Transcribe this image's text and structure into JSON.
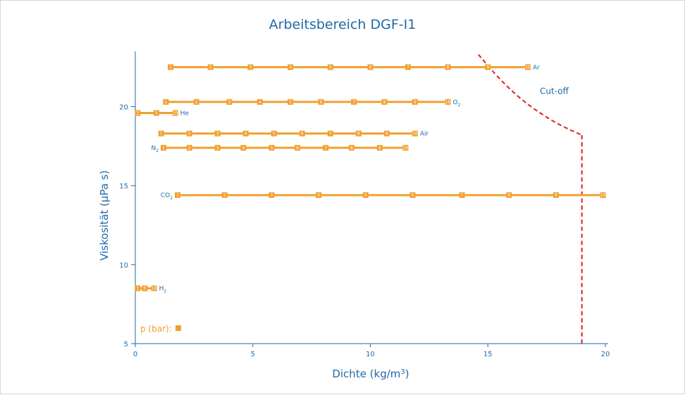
{
  "colors": {
    "axis": "#1f6aa8",
    "series": "#f0a030",
    "marker_text": "#ffffff",
    "cutoff": "#e02020"
  },
  "chart_data": {
    "type": "line",
    "title": "Arbeitsbereich DGF-I1",
    "xlabel": "Dichte (kg/m³)",
    "ylabel": "Viskosität (µPa s)",
    "xlim": [
      0,
      20
    ],
    "ylim": [
      5,
      23.5
    ],
    "x_ticks": [
      "0",
      "5",
      "10",
      "15",
      "20"
    ],
    "y_ticks": [
      "5",
      "10",
      "15",
      "20"
    ],
    "grid": false,
    "series": [
      {
        "name": "Ar",
        "label_side": "right",
        "y": 22.5,
        "points": [
          {
            "x": 1.5,
            "p": "1"
          },
          {
            "x": 3.2,
            "p": "2"
          },
          {
            "x": 4.9,
            "p": "3"
          },
          {
            "x": 6.6,
            "p": "4"
          },
          {
            "x": 8.3,
            "p": "5"
          },
          {
            "x": 10.0,
            "p": "6"
          },
          {
            "x": 11.6,
            "p": "7"
          },
          {
            "x": 13.3,
            "p": "8"
          },
          {
            "x": 15.0,
            "p": "9"
          },
          {
            "x": 16.7,
            "p": "10"
          }
        ]
      },
      {
        "name": "O",
        "sub": "2",
        "label_side": "right",
        "y": 20.3,
        "points": [
          {
            "x": 1.3,
            "p": "1"
          },
          {
            "x": 2.6,
            "p": "2"
          },
          {
            "x": 4.0,
            "p": "3"
          },
          {
            "x": 5.3,
            "p": "4"
          },
          {
            "x": 6.6,
            "p": "5"
          },
          {
            "x": 7.9,
            "p": "6"
          },
          {
            "x": 9.3,
            "p": "7"
          },
          {
            "x": 10.6,
            "p": "8"
          },
          {
            "x": 11.9,
            "p": "9"
          },
          {
            "x": 13.3,
            "p": "10"
          }
        ]
      },
      {
        "name": "He",
        "label_side": "right",
        "y": 19.6,
        "points": [
          {
            "x": 0.1,
            "p": "1"
          },
          {
            "x": 0.9,
            "p": "5"
          },
          {
            "x": 1.7,
            "p": "10"
          }
        ]
      },
      {
        "name": "Air",
        "label_side": "right",
        "y": 18.3,
        "points": [
          {
            "x": 1.1,
            "p": "1"
          },
          {
            "x": 2.3,
            "p": "2"
          },
          {
            "x": 3.5,
            "p": "3"
          },
          {
            "x": 4.7,
            "p": "4"
          },
          {
            "x": 5.9,
            "p": "5"
          },
          {
            "x": 7.1,
            "p": "6"
          },
          {
            "x": 8.3,
            "p": "7"
          },
          {
            "x": 9.5,
            "p": "8"
          },
          {
            "x": 10.7,
            "p": "9"
          },
          {
            "x": 11.9,
            "p": "10"
          }
        ]
      },
      {
        "name": "N",
        "sub": "2",
        "label_side": "left",
        "y": 17.4,
        "points": [
          {
            "x": 1.2,
            "p": "1"
          },
          {
            "x": 2.3,
            "p": "2"
          },
          {
            "x": 3.5,
            "p": "3"
          },
          {
            "x": 4.6,
            "p": "4"
          },
          {
            "x": 5.8,
            "p": "5"
          },
          {
            "x": 6.9,
            "p": "6"
          },
          {
            "x": 8.1,
            "p": "7"
          },
          {
            "x": 9.2,
            "p": "8"
          },
          {
            "x": 10.4,
            "p": "9"
          },
          {
            "x": 11.5,
            "p": "10"
          }
        ]
      },
      {
        "name": "CO",
        "sub": "2",
        "label_side": "left",
        "y": 14.4,
        "points": [
          {
            "x": 1.8,
            "p": "1"
          },
          {
            "x": 3.8,
            "p": "2"
          },
          {
            "x": 5.8,
            "p": "3"
          },
          {
            "x": 7.8,
            "p": "4"
          },
          {
            "x": 9.8,
            "p": "5"
          },
          {
            "x": 11.8,
            "p": "6"
          },
          {
            "x": 13.9,
            "p": "7"
          },
          {
            "x": 15.9,
            "p": "8"
          },
          {
            "x": 17.9,
            "p": "9"
          },
          {
            "x": 19.9,
            "p": "10"
          }
        ]
      },
      {
        "name": "H",
        "sub": "2",
        "label_side": "right",
        "y": 8.5,
        "points": [
          {
            "x": 0.1,
            "p": "1"
          },
          {
            "x": 0.4,
            "p": "5"
          },
          {
            "x": 0.8,
            "p": "10"
          }
        ]
      }
    ],
    "legend": {
      "text": "p (bar):"
    },
    "cutoff": {
      "label": "Cut-off",
      "curve": [
        {
          "x": 14.6,
          "y": 23.3
        },
        {
          "x": 15.4,
          "y": 21.9
        },
        {
          "x": 16.3,
          "y": 20.6
        },
        {
          "x": 17.2,
          "y": 19.6
        },
        {
          "x": 18.1,
          "y": 18.8
        },
        {
          "x": 19.0,
          "y": 18.2
        }
      ],
      "vertical": {
        "x": 19.0,
        "y_from": 18.2,
        "y_to": 5
      }
    }
  }
}
